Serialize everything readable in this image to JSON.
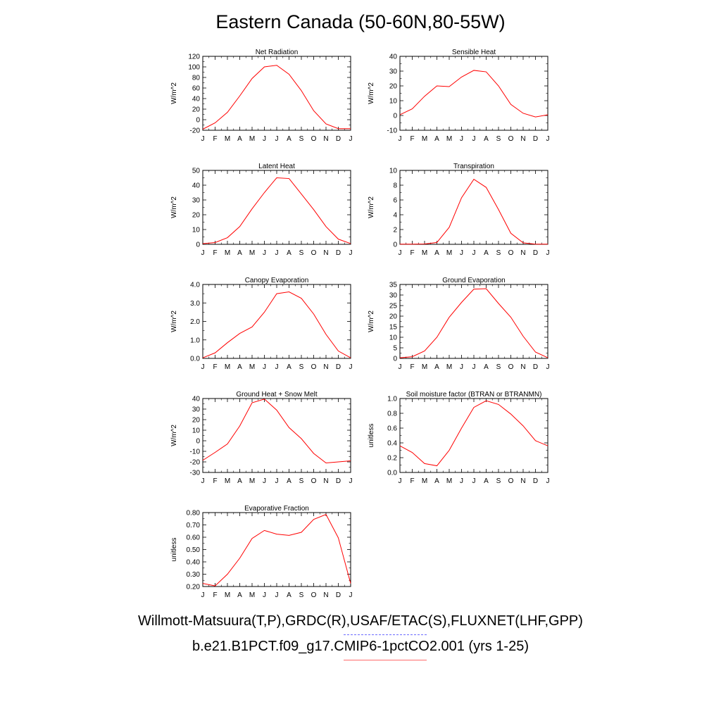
{
  "title": "Eastern Canada (50-60N,80-55W)",
  "colors": {
    "model_line": "#ff0000",
    "obs_line": "#6a6aff",
    "axis": "#000000"
  },
  "legend": {
    "obs_label": "Willmott-Matsuura(T,P),GRDC(R),USAF/ETAC(S),FLUXNET(LHF,GPP)",
    "model_label": "b.e21.B1PCT.f09_g17.CMIP6-1pctCO2.001 (yrs 1-25)"
  },
  "chart_data": [
    {
      "type": "line",
      "title": "Net Radiation",
      "ylabel": "W/m^2",
      "categories": [
        "J",
        "F",
        "M",
        "A",
        "M",
        "J",
        "J",
        "A",
        "S",
        "O",
        "N",
        "D",
        "J"
      ],
      "ylim": [
        -20,
        120
      ],
      "yticks": [
        -20,
        0,
        20,
        40,
        60,
        80,
        100,
        120
      ],
      "ytick_labels": [
        "-20",
        "0",
        "20",
        "40",
        "60",
        "80",
        "100",
        "120"
      ],
      "series": [
        {
          "values": [
            -18,
            -6,
            14,
            45,
            78,
            100,
            103,
            86,
            55,
            17,
            -8,
            -17,
            -17
          ]
        }
      ]
    },
    {
      "type": "line",
      "title": "Sensible Heat",
      "ylabel": "W/m^2",
      "categories": [
        "J",
        "F",
        "M",
        "A",
        "M",
        "J",
        "J",
        "A",
        "S",
        "O",
        "N",
        "D",
        "J"
      ],
      "ylim": [
        -10,
        40
      ],
      "yticks": [
        -10,
        0,
        10,
        20,
        30,
        40
      ],
      "ytick_labels": [
        "-10",
        "0",
        "10",
        "20",
        "30",
        "40"
      ],
      "series": [
        {
          "values": [
            0.5,
            4.5,
            13,
            20,
            19.5,
            26,
            30.5,
            29.5,
            20,
            7.5,
            1.5,
            -1,
            0.5
          ]
        }
      ]
    },
    {
      "type": "line",
      "title": "Latent Heat",
      "ylabel": "W/m^2",
      "categories": [
        "J",
        "F",
        "M",
        "A",
        "M",
        "J",
        "J",
        "A",
        "S",
        "O",
        "N",
        "D",
        "J"
      ],
      "ylim": [
        0,
        50
      ],
      "yticks": [
        0,
        10,
        20,
        30,
        40,
        50
      ],
      "ytick_labels": [
        "0",
        "10",
        "20",
        "30",
        "40",
        "50"
      ],
      "series": [
        {
          "values": [
            0.5,
            1.2,
            4.5,
            12,
            24,
            35,
            45,
            44.5,
            34,
            23.5,
            12,
            3.5,
            0.5
          ]
        }
      ]
    },
    {
      "type": "line",
      "title": "Transpiration",
      "ylabel": "W/m^2",
      "categories": [
        "J",
        "F",
        "M",
        "A",
        "M",
        "J",
        "J",
        "A",
        "S",
        "O",
        "N",
        "D",
        "J"
      ],
      "ylim": [
        0,
        10
      ],
      "yticks": [
        0,
        2,
        4,
        6,
        8,
        10
      ],
      "ytick_labels": [
        "0",
        "2",
        "4",
        "6",
        "8",
        "10"
      ],
      "series": [
        {
          "values": [
            0.02,
            0.02,
            0.05,
            0.25,
            2.3,
            6.3,
            8.8,
            7.7,
            4.7,
            1.5,
            0.2,
            0.03,
            0.02
          ]
        }
      ]
    },
    {
      "type": "line",
      "title": "Canopy Evaporation",
      "ylabel": "W/m^2",
      "categories": [
        "J",
        "F",
        "M",
        "A",
        "M",
        "J",
        "J",
        "A",
        "S",
        "O",
        "N",
        "D",
        "J"
      ],
      "ylim": [
        0,
        4
      ],
      "yticks": [
        0,
        1,
        2,
        3,
        4
      ],
      "ytick_labels": [
        "0.0",
        "1.0",
        "2.0",
        "3.0",
        "4.0"
      ],
      "series": [
        {
          "values": [
            0.03,
            0.3,
            0.85,
            1.35,
            1.7,
            2.5,
            3.5,
            3.6,
            3.25,
            2.4,
            1.3,
            0.4,
            0.03
          ]
        }
      ]
    },
    {
      "type": "line",
      "title": "Ground Evaporation",
      "ylabel": "W/m^2",
      "categories": [
        "J",
        "F",
        "M",
        "A",
        "M",
        "J",
        "J",
        "A",
        "S",
        "O",
        "N",
        "D",
        "J"
      ],
      "ylim": [
        0,
        35
      ],
      "yticks": [
        0,
        5,
        10,
        15,
        20,
        25,
        30,
        35
      ],
      "ytick_labels": [
        "0",
        "5",
        "10",
        "15",
        "20",
        "25",
        "30",
        "35"
      ],
      "series": [
        {
          "values": [
            0.3,
            0.8,
            3.5,
            10,
            19.5,
            26.5,
            32.8,
            33,
            26,
            19.5,
            10.5,
            3,
            0.3
          ]
        }
      ]
    },
    {
      "type": "line",
      "title": "Ground Heat + Snow Melt",
      "ylabel": "W/m^2",
      "categories": [
        "J",
        "F",
        "M",
        "A",
        "M",
        "J",
        "J",
        "A",
        "S",
        "O",
        "N",
        "D",
        "J"
      ],
      "ylim": [
        -30,
        40
      ],
      "yticks": [
        -30,
        -20,
        -10,
        0,
        10,
        20,
        30,
        40
      ],
      "ytick_labels": [
        "-30",
        "-20",
        "-10",
        "0",
        "10",
        "20",
        "30",
        "40"
      ],
      "series": [
        {
          "values": [
            -18.5,
            -11,
            -3,
            14,
            36,
            39.5,
            29,
            12.5,
            2,
            -12,
            -21,
            -20,
            -19
          ]
        }
      ]
    },
    {
      "type": "line",
      "title": "Soil moisture factor (BTRAN or BTRANMN)",
      "ylabel": "unitless",
      "categories": [
        "J",
        "F",
        "M",
        "A",
        "M",
        "J",
        "J",
        "A",
        "S",
        "O",
        "N",
        "D",
        "J"
      ],
      "ylim": [
        0,
        1
      ],
      "yticks": [
        0,
        0.2,
        0.4,
        0.6,
        0.8,
        1.0
      ],
      "ytick_labels": [
        "0.0",
        "0.2",
        "0.4",
        "0.6",
        "0.8",
        "1.0"
      ],
      "series": [
        {
          "values": [
            0.36,
            0.27,
            0.12,
            0.09,
            0.3,
            0.6,
            0.88,
            0.97,
            0.92,
            0.79,
            0.63,
            0.43,
            0.36
          ]
        }
      ]
    },
    {
      "type": "line",
      "title": "Evaporative Fraction",
      "ylabel": "unitless",
      "categories": [
        "J",
        "F",
        "M",
        "A",
        "M",
        "J",
        "J",
        "A",
        "S",
        "O",
        "N",
        "D",
        "J"
      ],
      "ylim": [
        0.2,
        0.8
      ],
      "yticks": [
        0.2,
        0.3,
        0.4,
        0.5,
        0.6,
        0.7,
        0.8
      ],
      "ytick_labels": [
        "0.20",
        "0.30",
        "0.40",
        "0.50",
        "0.60",
        "0.70",
        "0.80"
      ],
      "series": [
        {
          "values": [
            0.225,
            0.205,
            0.3,
            0.43,
            0.59,
            0.655,
            0.625,
            0.615,
            0.64,
            0.745,
            0.785,
            0.595,
            0.225
          ]
        }
      ]
    }
  ]
}
